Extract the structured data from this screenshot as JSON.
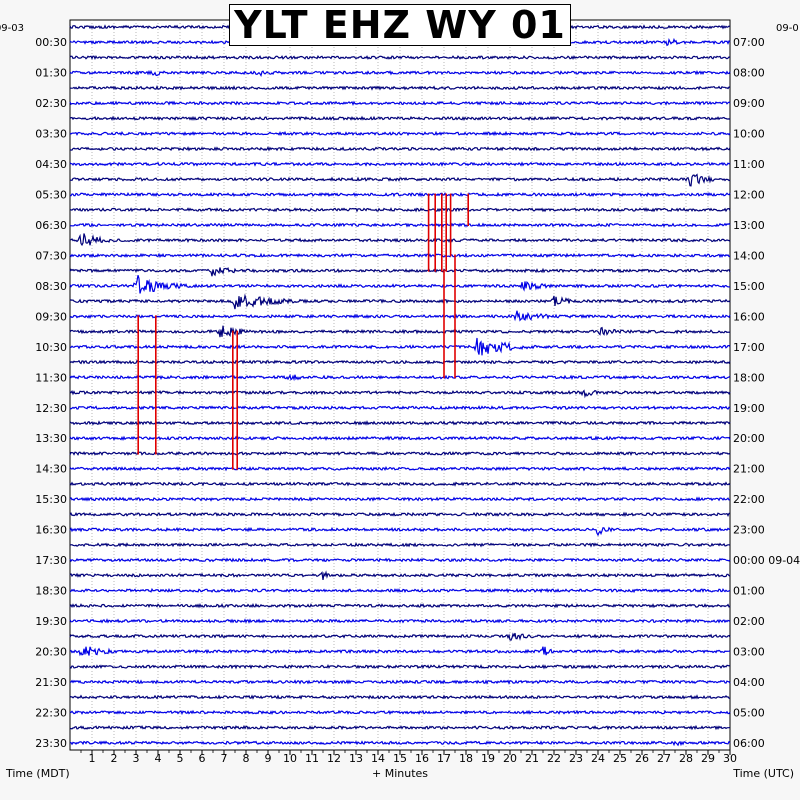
{
  "chart_data": {
    "type": "line",
    "title": "YLT EHZ WY 01",
    "date_left_top": "09-03",
    "date_right_top": "09-0",
    "xlabel": "+ Minutes",
    "left_axis_label": "Time (MDT)",
    "right_axis_label": "Time (UTC)",
    "xlim": [
      0,
      30
    ],
    "x_ticks": [
      "1",
      "2",
      "3",
      "4",
      "5",
      "6",
      "7",
      "8",
      "9",
      "10",
      "11",
      "12",
      "13",
      "14",
      "15",
      "16",
      "17",
      "18",
      "19",
      "20",
      "21",
      "22",
      "23",
      "24",
      "25",
      "26",
      "27",
      "28",
      "29",
      "30"
    ],
    "left_time_labels": [
      "00:30",
      "01:30",
      "02:30",
      "03:30",
      "04:30",
      "05:30",
      "06:30",
      "07:30",
      "08:30",
      "09:30",
      "10:30",
      "11:30",
      "12:30",
      "13:30",
      "14:30",
      "15:30",
      "16:30",
      "17:30",
      "18:30",
      "19:30",
      "20:30",
      "21:30",
      "22:30",
      "23:30"
    ],
    "right_time_labels": [
      "07:00",
      "08:00",
      "09:00",
      "10:00",
      "11:00",
      "12:00",
      "13:00",
      "14:00",
      "15:00",
      "16:00",
      "17:00",
      "18:00",
      "19:00",
      "20:00",
      "21:00",
      "22:00",
      "23:00",
      "00:00 09-04",
      "01:00",
      "02:00",
      "03:00",
      "04:00",
      "05:00",
      "06:00"
    ],
    "traces_per_hour": 2,
    "trace_colors": [
      "#00007a",
      "#0000e6"
    ],
    "clip_color": "#e00000",
    "events": [
      {
        "trace": 1,
        "x": 27.2,
        "amp": 6,
        "dur": 0.8
      },
      {
        "trace": 3,
        "x": 3.8,
        "amp": 4,
        "dur": 1.5
      },
      {
        "trace": 3,
        "x": 8.5,
        "amp": 4,
        "dur": 2.0
      },
      {
        "trace": 10,
        "x": 28.2,
        "amp": 8,
        "dur": 1.5
      },
      {
        "trace": 14,
        "x": 0.5,
        "amp": 9,
        "dur": 1.8
      },
      {
        "trace": 16,
        "x": 6.5,
        "amp": 8,
        "dur": 1.4
      },
      {
        "trace": 17,
        "x": 3.0,
        "amp": 12,
        "dur": 2.6
      },
      {
        "trace": 17,
        "x": 20.5,
        "amp": 6,
        "dur": 2.0
      },
      {
        "trace": 18,
        "x": 7.5,
        "amp": 9,
        "dur": 3.5
      },
      {
        "trace": 18,
        "x": 22.0,
        "amp": 6,
        "dur": 1.5
      },
      {
        "trace": 19,
        "x": 20.3,
        "amp": 6,
        "dur": 2.8
      },
      {
        "trace": 20,
        "x": 6.8,
        "amp": 7,
        "dur": 2.5
      },
      {
        "trace": 20,
        "x": 24.0,
        "amp": 5,
        "dur": 2.0
      },
      {
        "trace": 21,
        "x": 18.5,
        "amp": 10,
        "dur": 3.0
      },
      {
        "trace": 23,
        "x": 10.0,
        "amp": 5,
        "dur": 1.0
      },
      {
        "trace": 24,
        "x": 23.3,
        "amp": 5,
        "dur": 1.5
      },
      {
        "trace": 33,
        "x": 24.0,
        "amp": 6,
        "dur": 1.0
      },
      {
        "trace": 36,
        "x": 11.5,
        "amp": 5,
        "dur": 0.8
      },
      {
        "trace": 40,
        "x": 20.0,
        "amp": 5,
        "dur": 1.5
      },
      {
        "trace": 41,
        "x": 0.5,
        "amp": 8,
        "dur": 2.0
      },
      {
        "trace": 41,
        "x": 21.5,
        "amp": 6,
        "dur": 1.0
      },
      {
        "trace": 47,
        "x": 27.5,
        "amp": 4,
        "dur": 0.8
      }
    ],
    "clip_events": [
      {
        "x": 16.3,
        "trace_from": 11,
        "trace_to": 16
      },
      {
        "x": 16.6,
        "trace_from": 11,
        "trace_to": 16
      },
      {
        "x": 16.9,
        "trace_from": 11,
        "trace_to": 16
      },
      {
        "x": 17.1,
        "trace_from": 11,
        "trace_to": 16
      },
      {
        "x": 17.3,
        "trace_from": 11,
        "trace_to": 15
      },
      {
        "x": 18.1,
        "trace_from": 11,
        "trace_to": 13
      },
      {
        "x": 17.0,
        "trace_from": 16,
        "trace_to": 23
      },
      {
        "x": 17.5,
        "trace_from": 15,
        "trace_to": 23
      },
      {
        "x": 3.1,
        "trace_from": 19,
        "trace_to": 28
      },
      {
        "x": 3.9,
        "trace_from": 19,
        "trace_to": 28
      },
      {
        "x": 7.4,
        "trace_from": 20,
        "trace_to": 29
      },
      {
        "x": 7.6,
        "trace_from": 20,
        "trace_to": 29
      }
    ]
  }
}
